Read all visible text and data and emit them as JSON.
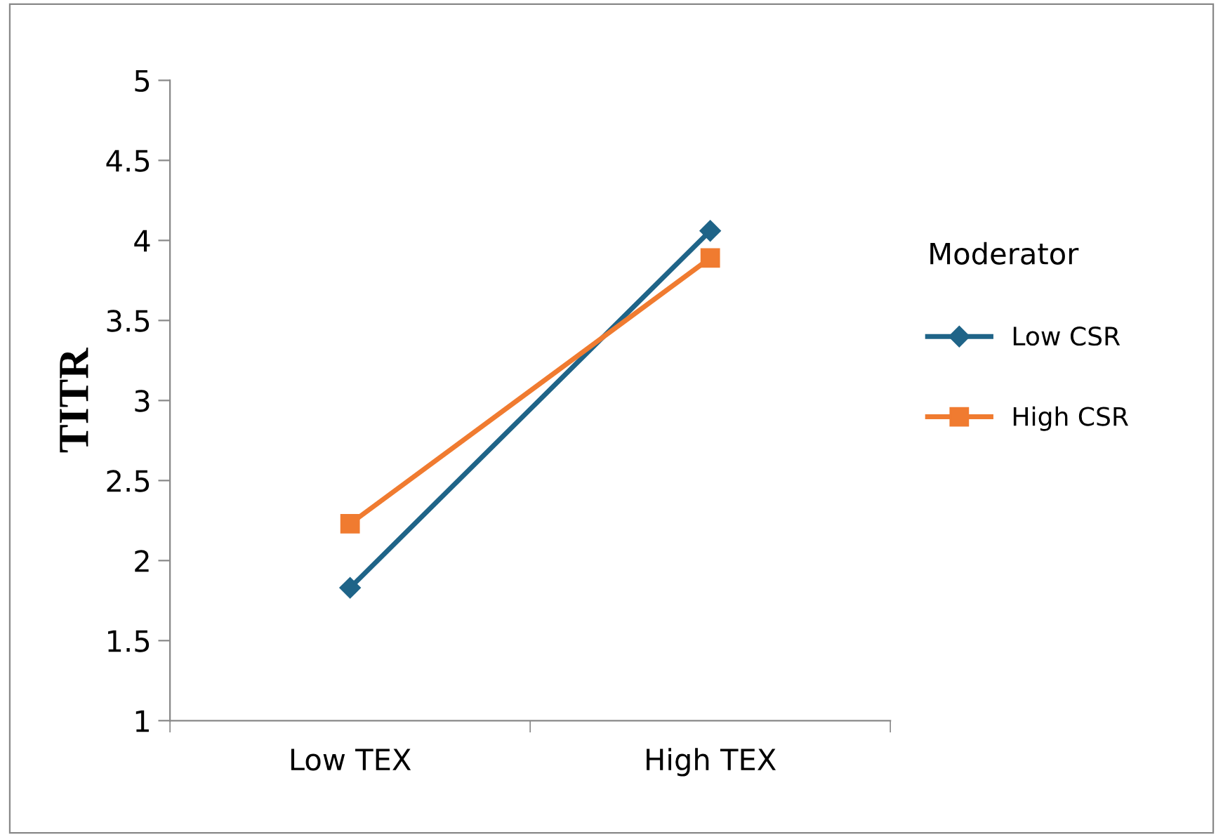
{
  "chart_data": {
    "type": "line",
    "ylabel": "TITR",
    "legend_title": "Moderator",
    "categories": [
      "Low TEX",
      "High TEX"
    ],
    "series": [
      {
        "name": "Low CSR",
        "color": "#1f6488",
        "marker": "diamond",
        "values": [
          1.83,
          4.06
        ]
      },
      {
        "name": "High CSR",
        "color": "#f07b30",
        "marker": "square",
        "values": [
          2.23,
          3.89
        ]
      }
    ],
    "ylim": [
      1,
      5
    ],
    "yticks": [
      1,
      1.5,
      2,
      2.5,
      3,
      3.5,
      4,
      4.5,
      5
    ],
    "grid": false,
    "legend": "right",
    "line_style": "solid"
  }
}
